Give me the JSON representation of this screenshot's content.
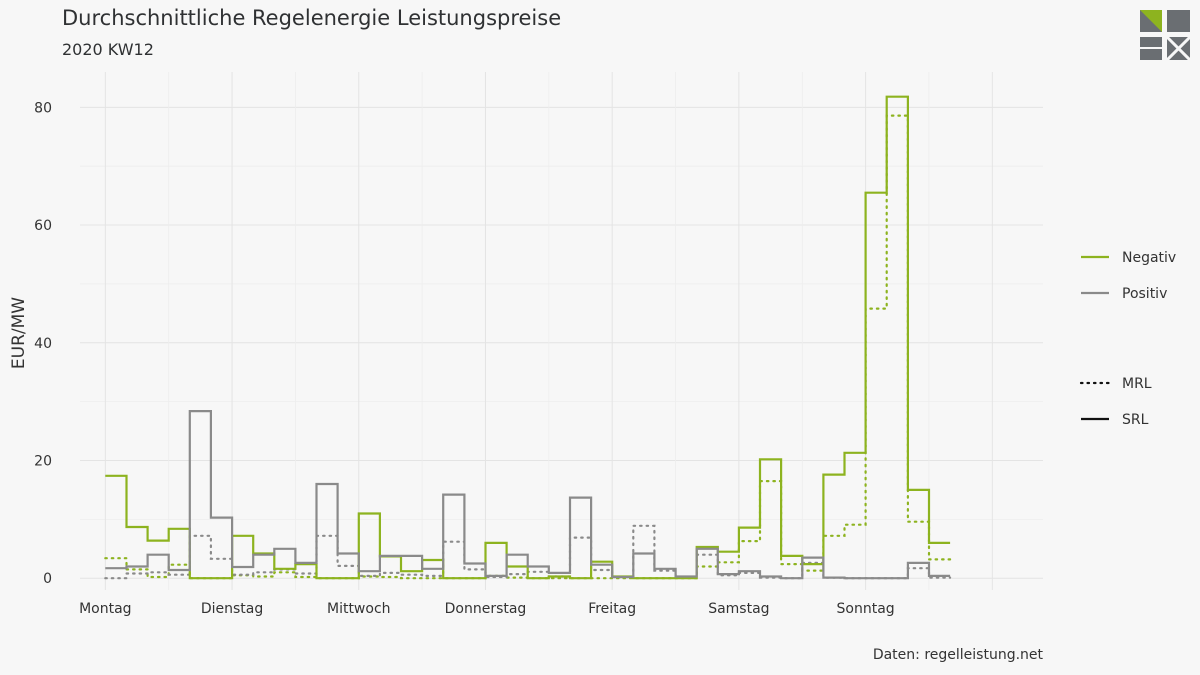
{
  "title": "Durchschnittliche Regelenergie Leistungspreise",
  "subtitle": "2020 KW12",
  "source": "Daten: regelleistung.net",
  "logo": "regelleistung-logo",
  "chart_data": {
    "type": "line",
    "step": true,
    "ylabel": "EUR/MW",
    "ylim": [
      -2,
      86
    ],
    "yticks": [
      0,
      20,
      40,
      60,
      80
    ],
    "xlim": [
      -0.2,
      7.4
    ],
    "x_ticks": [
      {
        "x": 0,
        "label": "Montag"
      },
      {
        "x": 1,
        "label": "Dienstag"
      },
      {
        "x": 2,
        "label": "Mittwoch"
      },
      {
        "x": 3,
        "label": "Donnerstag"
      },
      {
        "x": 4,
        "label": "Freitag"
      },
      {
        "x": 5,
        "label": "Samstag"
      },
      {
        "x": 6,
        "label": "Sonntag"
      }
    ],
    "grid": true,
    "legend_position": "right",
    "colors": {
      "negativ": "#8db31f",
      "positiv": "#8a8a8a"
    },
    "legend": {
      "color_items": [
        {
          "key": "negativ",
          "label": "Negativ"
        },
        {
          "key": "positiv",
          "label": "Positiv"
        }
      ],
      "style_items": [
        {
          "key": "mrl",
          "label": "MRL"
        },
        {
          "key": "srl",
          "label": "SRL"
        }
      ]
    },
    "series": [
      {
        "color": "negativ",
        "style": "srl",
        "start": 0,
        "step_width": 0.16667,
        "values": [
          17.4,
          8.7,
          6.4,
          8.4,
          0,
          0,
          7.2,
          4.2,
          1.6,
          2.4,
          0,
          0,
          11.0,
          3.7,
          1.2,
          3.1,
          0,
          0,
          6.0,
          2.0,
          0,
          0.3,
          0,
          2.8,
          0.3,
          0,
          0,
          0,
          5.3,
          4.5,
          8.6,
          20.2,
          3.8,
          2.4,
          17.6,
          21.3,
          65.5,
          81.8,
          15.0,
          6.0
        ]
      },
      {
        "color": "positiv",
        "style": "srl",
        "start": 0,
        "step_width": 0.16667,
        "values": [
          1.7,
          2.0,
          4.0,
          1.4,
          28.4,
          10.3,
          1.9,
          4.0,
          5.0,
          2.6,
          16.0,
          4.2,
          1.2,
          3.8,
          3.8,
          1.6,
          14.2,
          2.5,
          0.4,
          4.0,
          2.0,
          0.9,
          13.7,
          2.3,
          0.2,
          4.2,
          1.6,
          0.3,
          5.0,
          0.7,
          1.2,
          0.3,
          0,
          3.5,
          0.1,
          0,
          0,
          0,
          2.6,
          0.4
        ]
      },
      {
        "color": "negativ",
        "style": "mrl",
        "start": 0,
        "step_width": 0.16667,
        "values": [
          3.4,
          1.5,
          0.2,
          2.3,
          0,
          0,
          0.5,
          0.3,
          1.0,
          0.2,
          0,
          0,
          0.3,
          0.2,
          0,
          0,
          0,
          0,
          0.4,
          0.1,
          0,
          0,
          0,
          0,
          0,
          0,
          0,
          0,
          2.0,
          2.7,
          6.3,
          16.5,
          2.4,
          1.3,
          7.2,
          9.1,
          45.8,
          78.6,
          9.6,
          3.2
        ]
      },
      {
        "color": "positiv",
        "style": "mrl",
        "start": 0,
        "step_width": 0.16667,
        "values": [
          0,
          0.8,
          1.0,
          0.6,
          7.2,
          3.3,
          0.6,
          1.0,
          1.5,
          0.8,
          7.2,
          2.1,
          0.4,
          0.9,
          0.6,
          0.4,
          6.2,
          1.5,
          0.2,
          0.7,
          1.1,
          0.3,
          6.9,
          1.4,
          0.2,
          8.9,
          1.3,
          0.2,
          4.0,
          0.5,
          0.9,
          0.1,
          0,
          2.6,
          0.1,
          0,
          0,
          0,
          1.7,
          0.1
        ]
      }
    ]
  }
}
